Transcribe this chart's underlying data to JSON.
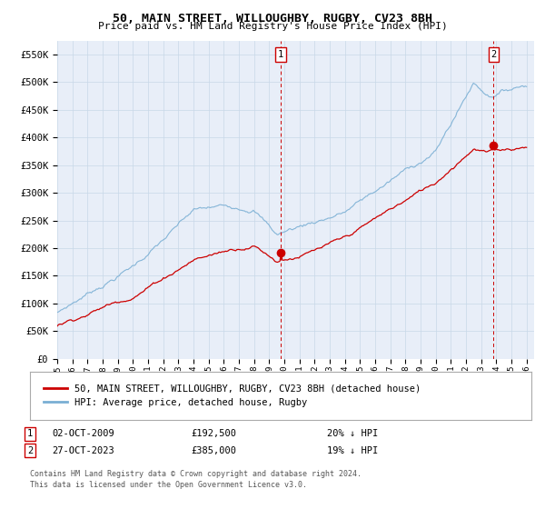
{
  "title": "50, MAIN STREET, WILLOUGHBY, RUGBY, CV23 8BH",
  "subtitle": "Price paid vs. HM Land Registry's House Price Index (HPI)",
  "legend_house": "50, MAIN STREET, WILLOUGHBY, RUGBY, CV23 8BH (detached house)",
  "legend_hpi": "HPI: Average price, detached house, Rugby",
  "sale1_date": "02-OCT-2009",
  "sale1_price": "£192,500",
  "sale1_hpi": "20% ↓ HPI",
  "sale2_date": "27-OCT-2023",
  "sale2_price": "£385,000",
  "sale2_hpi": "19% ↓ HPI",
  "footnote1": "Contains HM Land Registry data © Crown copyright and database right 2024.",
  "footnote2": "This data is licensed under the Open Government Licence v3.0.",
  "house_color": "#cc0000",
  "hpi_color": "#7aafd4",
  "vline_color": "#cc0000",
  "grid_color": "#c8d8e8",
  "plot_bg": "#e8eef8",
  "ylim": [
    0,
    575000
  ],
  "yticks": [
    0,
    50000,
    100000,
    150000,
    200000,
    250000,
    300000,
    350000,
    400000,
    450000,
    500000,
    550000
  ],
  "sale1_x": 2009.75,
  "sale1_y": 192500,
  "sale2_x": 2023.82,
  "sale2_y": 385000,
  "xmin": 1995,
  "xmax": 2026.5
}
